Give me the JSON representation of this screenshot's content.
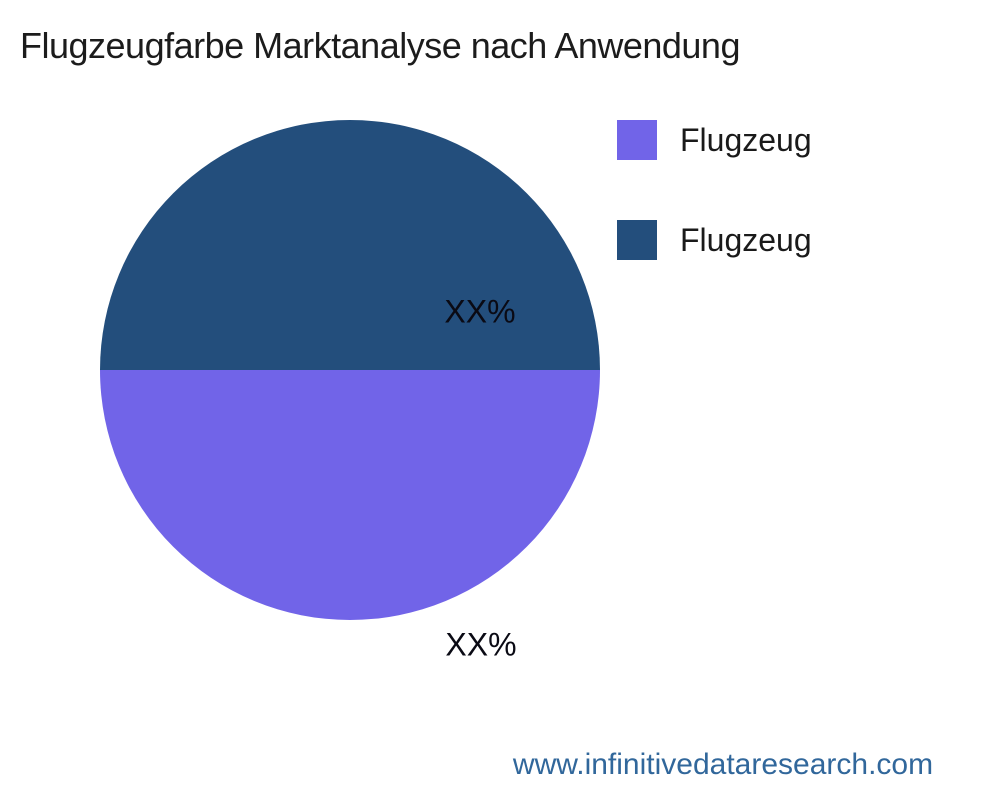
{
  "page": {
    "background": "#ffffff",
    "footer": "www.infinitivedataresearch.com",
    "footer_color": "#31679B"
  },
  "chart_data": {
    "type": "pie",
    "title": "Flugzeugfarbe Marktanalyse nach Anwendung",
    "slices": [
      {
        "label": "Flugzeug",
        "value": 50,
        "display_value": "XX%",
        "color": "#7164E8",
        "position": "bottom-half"
      },
      {
        "label": "Flugzeug",
        "value": 50,
        "display_value": "XX%",
        "color": "#234E7C",
        "position": "top-half"
      }
    ],
    "start_angle_deg": 90,
    "direction": "clockwise",
    "value_labels_shown_as": "XX%",
    "legend_position": "upper-right",
    "legend_entries": [
      "Flugzeug",
      "Flugzeug"
    ],
    "grid": false
  }
}
